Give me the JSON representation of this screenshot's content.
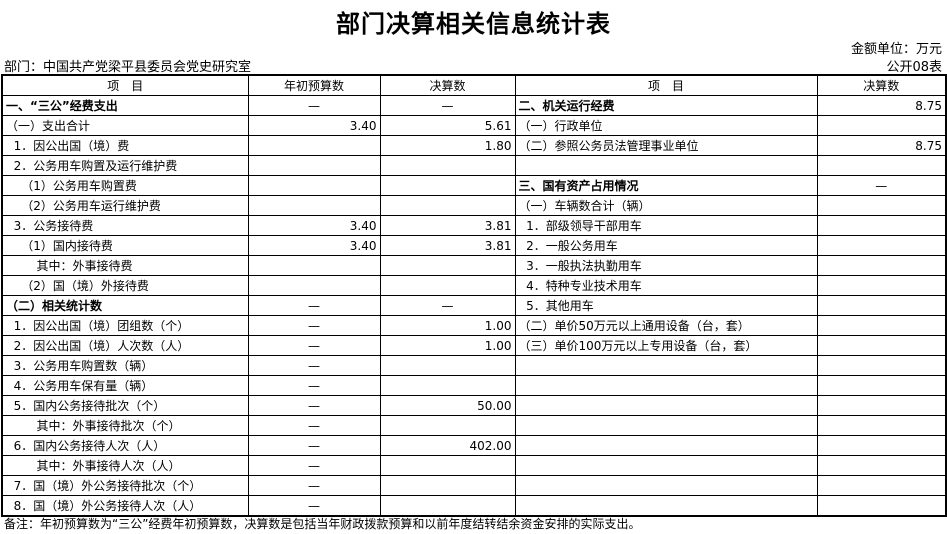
{
  "title": "部门决算相关信息统计表",
  "unit": "金额单位：万元",
  "department": "部门：中国共产党梁平县委员会党史研究室",
  "table_code": "公开08表",
  "headers": [
    "项　目",
    "年初预算数",
    "决算数",
    "项　目",
    "决算数"
  ],
  "rows": [
    [
      "一、“三公”经费支出",
      "—",
      "—",
      "二、机关运行经费",
      "8.75"
    ],
    [
      "（一）支出合计",
      "3.40",
      "5.61",
      "（一）行政单位",
      ""
    ],
    [
      "  1．因公出国（境）费",
      "",
      "1.80",
      "（二）参照公务员法管理事业单位",
      "8.75"
    ],
    [
      "  2．公务用车购置及运行维护费",
      "",
      "",
      "",
      ""
    ],
    [
      "    （1）公务用车购置费",
      "",
      "",
      "三、国有资产占用情况",
      "—"
    ],
    [
      "    （2）公务用车运行维护费",
      "",
      "",
      "（一）车辆数合计（辆）",
      ""
    ],
    [
      "  3．公务接待费",
      "3.40",
      "3.81",
      "  1．部级领导干部用车",
      ""
    ],
    [
      "    （1）国内接待费",
      "3.40",
      "3.81",
      "  2．一般公务用车",
      ""
    ],
    [
      "        其中：外事接待费",
      "",
      "",
      "  3．一般执法执勤用车",
      ""
    ],
    [
      "    （2）国（境）外接待费",
      "",
      "",
      "  4．特种专业技术用车",
      ""
    ],
    [
      "（二）相关统计数",
      "—",
      "—",
      "  5．其他用车",
      ""
    ],
    [
      "  1．因公出国（境）团组数（个）",
      "—",
      "1.00",
      "（二）单价50万元以上通用设备（台，套）",
      ""
    ],
    [
      "  2．因公出国（境）人次数（人）",
      "—",
      "1.00",
      "（三）单价100万元以上专用设备（台，套）",
      ""
    ],
    [
      "  3．公务用车购置数（辆）",
      "—",
      "",
      "",
      ""
    ],
    [
      "  4．公务用车保有量（辆）",
      "—",
      "",
      "",
      ""
    ],
    [
      "  5．国内公务接待批次（个）",
      "—",
      "50.00",
      "",
      ""
    ],
    [
      "        其中：外事接待批次（个）",
      "—",
      "",
      "",
      ""
    ],
    [
      "  6．国内公务接待人次（人）",
      "—",
      "402.00",
      "",
      ""
    ],
    [
      "        其中：外事接待人次（人）",
      "—",
      "",
      "",
      ""
    ],
    [
      "  7．国（境）外公务接待批次（个）",
      "—",
      "",
      "",
      ""
    ],
    [
      "  8．国（境）外公务接待人次（人）",
      "—",
      "",
      "",
      ""
    ]
  ],
  "bold_rows_left": [
    0,
    10
  ],
  "bold_rows_right": [
    0,
    4
  ],
  "note": "备注：年初预算数为“三公”经费年初预算数，决算数是包括当年财政拨款预算和以前年度结转结余资金安排的实际支出。"
}
